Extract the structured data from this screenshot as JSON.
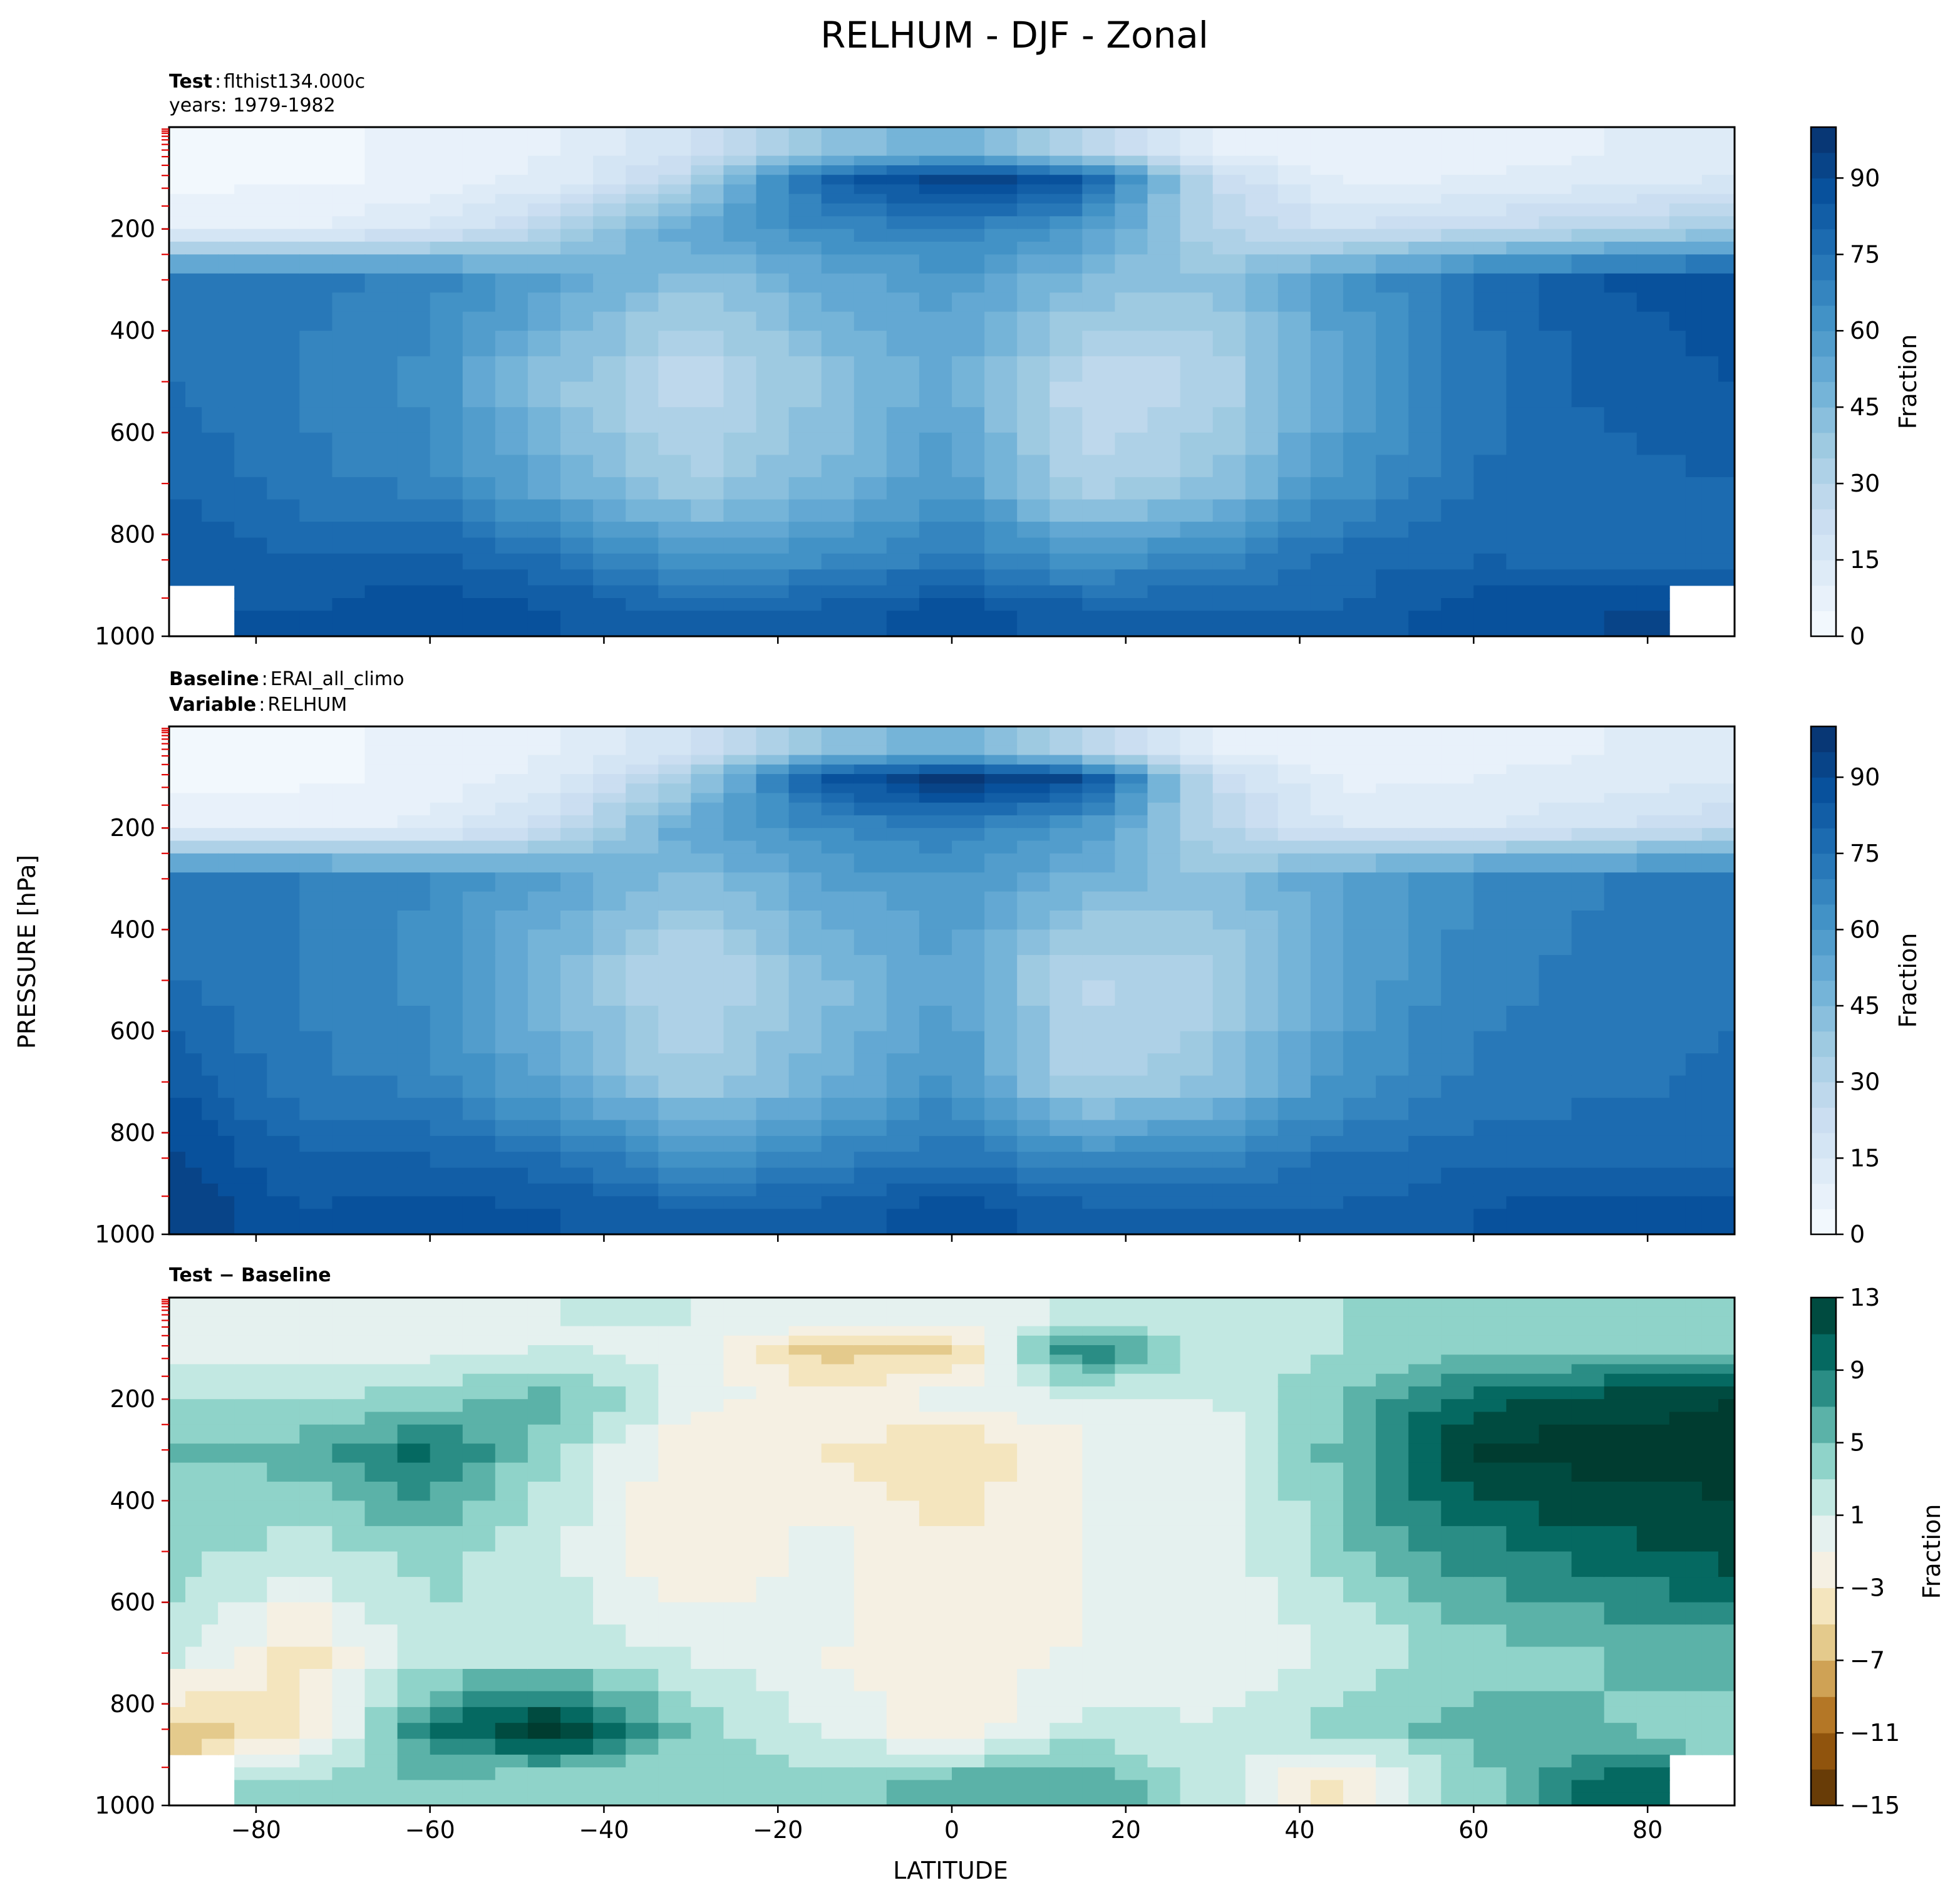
{
  "figure": {
    "title": "RELHUM - DJF - Zonal",
    "ylabel": "PRESSURE [hPa]",
    "xlabel": "LATITUDE"
  },
  "panels": [
    {
      "id": "test",
      "header": [
        {
          "bold": "Test",
          "sep": ":",
          "text": "flthist134.000c"
        },
        {
          "bold": "",
          "sep": "",
          "text": "years: 1979-1982"
        }
      ],
      "colorbar": {
        "label": "Fraction",
        "ticks": [
          "0",
          "15",
          "30",
          "45",
          "60",
          "75",
          "90"
        ],
        "min": 0,
        "max": 100,
        "cmap": "blues"
      }
    },
    {
      "id": "baseline",
      "header": [
        {
          "bold": "Baseline",
          "sep": ":",
          "text": "ERAI_all_climo"
        },
        {
          "bold": "Variable",
          "sep": ":",
          "text": "RELHUM"
        }
      ],
      "colorbar": {
        "label": "Fraction",
        "ticks": [
          "0",
          "15",
          "30",
          "45",
          "60",
          "75",
          "90"
        ],
        "min": 0,
        "max": 100,
        "cmap": "blues"
      }
    },
    {
      "id": "diff",
      "header": [
        {
          "bold": "Test − Baseline",
          "sep": "",
          "text": ""
        }
      ],
      "colorbar": {
        "label": "Fraction",
        "ticks": [
          "13",
          "9",
          "5",
          "1",
          "−3",
          "−7",
          "−11",
          "−15"
        ],
        "min": -15,
        "max": 13,
        "cmap": "brbg"
      }
    }
  ],
  "chart_data": [
    {
      "type": "heatmap",
      "title": "Test : flthist134.000c",
      "xlabel": "LATITUDE",
      "ylabel": "PRESSURE [hPa]",
      "xlim": [
        -90,
        90
      ],
      "ylim": [
        1000,
        0
      ],
      "x_ticks": [
        "−80",
        "−60",
        "−40",
        "−20",
        "0",
        "20",
        "40",
        "60",
        "80"
      ],
      "y_ticks": [
        "200",
        "400",
        "600",
        "800",
        "1000"
      ],
      "x": [
        -90,
        -75,
        -60,
        -45,
        -30,
        -15,
        0,
        15,
        30,
        45,
        60,
        75,
        90
      ],
      "y": [
        50,
        100,
        200,
        300,
        500,
        700,
        850,
        950
      ],
      "z": [
        [
          3,
          4,
          6,
          10,
          20,
          40,
          50,
          30,
          10,
          6,
          8,
          10,
          15
        ],
        [
          3,
          4,
          6,
          12,
          30,
          80,
          95,
          85,
          25,
          8,
          10,
          12,
          15
        ],
        [
          10,
          10,
          15,
          30,
          55,
          65,
          70,
          60,
          30,
          20,
          25,
          30,
          35
        ],
        [
          70,
          72,
          68,
          55,
          40,
          52,
          58,
          45,
          40,
          60,
          75,
          85,
          88
        ],
        [
          75,
          70,
          62,
          40,
          25,
          40,
          52,
          25,
          30,
          55,
          72,
          82,
          85
        ],
        [
          80,
          72,
          68,
          50,
          35,
          45,
          60,
          30,
          40,
          62,
          75,
          78,
          80
        ],
        [
          85,
          80,
          82,
          75,
          60,
          65,
          72,
          62,
          68,
          78,
          80,
          78,
          80
        ],
        [
          null,
          85,
          90,
          85,
          80,
          82,
          88,
          82,
          80,
          80,
          88,
          90,
          null
        ]
      ]
    },
    {
      "type": "heatmap",
      "title": "Baseline : ERAI_all_climo",
      "xlabel": "LATITUDE",
      "ylabel": "PRESSURE [hPa]",
      "xlim": [
        -90,
        90
      ],
      "ylim": [
        1000,
        0
      ],
      "x_ticks": [
        "−80",
        "−60",
        "−40",
        "−20",
        "0",
        "20",
        "40",
        "60",
        "80"
      ],
      "y_ticks": [
        "200",
        "400",
        "600",
        "800",
        "1000"
      ],
      "x": [
        -90,
        -75,
        -60,
        -45,
        -30,
        -15,
        0,
        15,
        30,
        45,
        60,
        75,
        90
      ],
      "y": [
        50,
        100,
        200,
        300,
        500,
        700,
        850,
        950
      ],
      "z": [
        [
          3,
          4,
          6,
          10,
          20,
          40,
          50,
          30,
          10,
          6,
          8,
          10,
          12
        ],
        [
          3,
          4,
          6,
          12,
          35,
          85,
          98,
          90,
          25,
          8,
          10,
          12,
          14
        ],
        [
          8,
          8,
          12,
          25,
          55,
          65,
          70,
          60,
          30,
          15,
          15,
          20,
          25
        ],
        [
          72,
          70,
          65,
          55,
          42,
          55,
          60,
          48,
          42,
          55,
          65,
          70,
          72
        ],
        [
          75,
          70,
          62,
          42,
          28,
          42,
          55,
          28,
          33,
          55,
          68,
          72,
          74
        ],
        [
          85,
          72,
          68,
          52,
          35,
          48,
          62,
          32,
          40,
          62,
          72,
          74,
          76
        ],
        [
          92,
          80,
          80,
          75,
          62,
          68,
          75,
          65,
          68,
          76,
          78,
          78,
          78
        ],
        [
          95,
          85,
          88,
          85,
          80,
          82,
          88,
          82,
          80,
          80,
          85,
          88,
          88
        ]
      ]
    },
    {
      "type": "heatmap",
      "title": "Test − Baseline",
      "xlabel": "LATITUDE",
      "ylabel": "PRESSURE [hPa]",
      "xlim": [
        -90,
        90
      ],
      "ylim": [
        1000,
        0
      ],
      "x_ticks": [
        "−80",
        "−60",
        "−40",
        "−20",
        "0",
        "20",
        "40",
        "60",
        "80"
      ],
      "y_ticks": [
        "200",
        "400",
        "600",
        "800",
        "1000"
      ],
      "x": [
        -90,
        -75,
        -60,
        -45,
        -30,
        -15,
        0,
        15,
        30,
        45,
        60,
        75,
        90
      ],
      "y": [
        50,
        100,
        200,
        300,
        500,
        700,
        850,
        950
      ],
      "z": [
        [
          0,
          0,
          0,
          1,
          1,
          0,
          -1,
          2,
          2,
          3,
          3,
          3,
          3
        ],
        [
          0,
          0,
          0,
          1,
          0,
          -6,
          -6,
          10,
          2,
          3,
          4,
          4,
          4
        ],
        [
          3,
          3,
          4,
          6,
          0,
          -2,
          0,
          0,
          1,
          5,
          10,
          12,
          13
        ],
        [
          5,
          6,
          10,
          3,
          -3,
          -3,
          -5,
          -1,
          -1,
          6,
          14,
          14,
          14
        ],
        [
          4,
          2,
          4,
          1,
          -3,
          0,
          -3,
          -1,
          -1,
          5,
          8,
          10,
          12
        ],
        [
          2,
          -4,
          2,
          2,
          1,
          -1,
          -2,
          -1,
          0,
          1,
          4,
          5,
          6
        ],
        [
          -6,
          -4,
          9,
          14,
          4,
          1,
          -3,
          2,
          1,
          4,
          6,
          5,
          4
        ],
        [
          null,
          3,
          5,
          3,
          3,
          4,
          6,
          7,
          2,
          -4,
          4,
          10,
          null
        ]
      ]
    }
  ]
}
